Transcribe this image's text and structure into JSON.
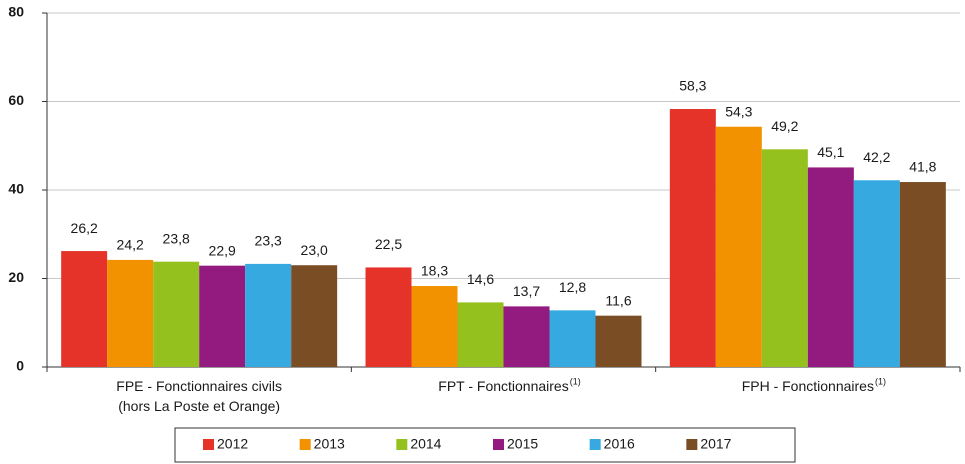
{
  "chart_data": {
    "type": "bar",
    "categories": [
      "FPE - Fonctionnaires civils\n(hors La Poste et Orange)",
      "FPT - Fonctionnaires",
      "FPH - Fonctionnaires"
    ],
    "category_notes": [
      null,
      "(1)",
      "(1)"
    ],
    "series": [
      {
        "name": "2012",
        "color": "#e5332a",
        "values": [
          26.2,
          22.5,
          58.3
        ],
        "value_labels": [
          "26,2",
          "22,5",
          "58,3"
        ]
      },
      {
        "name": "2013",
        "color": "#f39200",
        "values": [
          24.2,
          18.3,
          54.3
        ],
        "value_labels": [
          "24,2",
          "18,3",
          "54,3"
        ]
      },
      {
        "name": "2014",
        "color": "#95c11f",
        "values": [
          23.8,
          14.6,
          49.2
        ],
        "value_labels": [
          "23,8",
          "14,6",
          "49,2"
        ]
      },
      {
        "name": "2015",
        "color": "#931b7f",
        "values": [
          22.9,
          13.7,
          45.1
        ],
        "value_labels": [
          "22,9",
          "13,7",
          "45,1"
        ]
      },
      {
        "name": "2016",
        "color": "#36a9e1",
        "values": [
          23.3,
          12.8,
          42.2
        ],
        "value_labels": [
          "23,3",
          "12,8",
          "42,2"
        ]
      },
      {
        "name": "2017",
        "color": "#7b4d24",
        "values": [
          23.0,
          11.6,
          41.8
        ],
        "value_labels": [
          "23,0",
          "11,6",
          "41,8"
        ]
      }
    ],
    "ylim": [
      0,
      80
    ],
    "yticks": [
      0,
      20,
      40,
      60,
      80
    ],
    "grid": true
  }
}
